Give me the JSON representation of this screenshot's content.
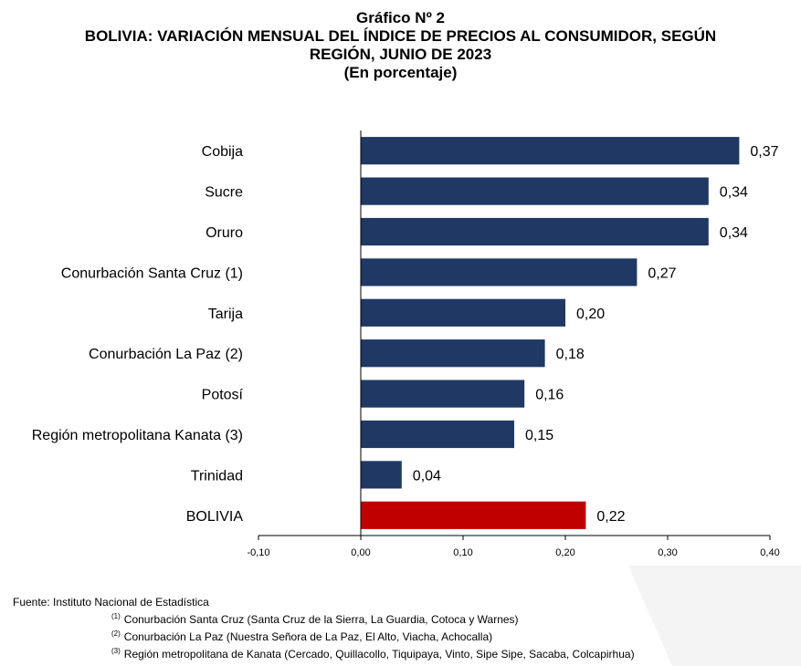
{
  "titles": {
    "line1": "Gráfico Nº 2",
    "line2": "BOLIVIA: VARIACIÓN MENSUAL DEL ÍNDICE DE PRECIOS AL CONSUMIDOR, SEGÚN",
    "line3": "REGIÓN, JUNIO DE 2023",
    "line4": "(En porcentaje)"
  },
  "chart_data": {
    "type": "bar",
    "orientation": "horizontal",
    "categories": [
      "Cobija",
      "Sucre",
      "Oruro",
      "Conurbación Santa Cruz (1)",
      "Tarija",
      "Conurbación La Paz (2)",
      "Potosí",
      "Región metropolitana Kanata (3)",
      "Trinidad",
      "BOLIVIA"
    ],
    "values": [
      0.37,
      0.34,
      0.34,
      0.27,
      0.2,
      0.18,
      0.16,
      0.15,
      0.04,
      0.22
    ],
    "value_labels": [
      "0,37",
      "0,34",
      "0,34",
      "0,27",
      "0,20",
      "0,18",
      "0,16",
      "0,15",
      "0,04",
      "0,22"
    ],
    "colors": [
      "#1f3864",
      "#1f3864",
      "#1f3864",
      "#1f3864",
      "#1f3864",
      "#1f3864",
      "#1f3864",
      "#1f3864",
      "#1f3864",
      "#c00000"
    ],
    "xlim": [
      -0.1,
      0.4
    ],
    "xticks": [
      -0.1,
      0.0,
      0.1,
      0.2,
      0.3,
      0.4
    ],
    "xtick_labels": [
      "-0,10",
      "0,00",
      "0,10",
      "0,20",
      "0,30",
      "0,40"
    ],
    "grid": false,
    "legend": "none"
  },
  "footer": {
    "source": "Fuente: Instituto Nacional de Estadística",
    "notes": [
      {
        "mark": "(1)",
        "text": "Conurbación Santa Cruz (Santa Cruz de la Sierra, La Guardia, Cotoca y Warnes)"
      },
      {
        "mark": "(2)",
        "text": "Conurbación La Paz (Nuestra Señora de La Paz, El Alto, Viacha, Achocalla)"
      },
      {
        "mark": "(3)",
        "text": "Región metropolitana de Kanata (Cercado, Quillacollo, Tiquipaya, Vinto, Sipe Sipe, Sacaba, Colcapirhua)"
      }
    ]
  }
}
